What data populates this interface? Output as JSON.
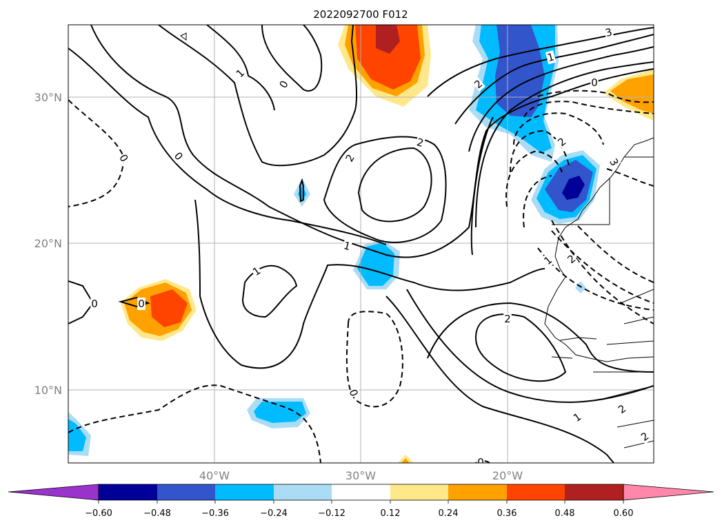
{
  "title": "2022092700 F012",
  "lat_labels": [
    "30°N",
    "20°N",
    "10°N"
  ],
  "lon_labels": [
    "40°W",
    "30°W",
    "20°W"
  ],
  "colorbar": {
    "ticks": [
      "−0.60",
      "−0.48",
      "−0.36",
      "−0.24",
      "−0.12",
      "0.12",
      "0.24",
      "0.36",
      "0.48",
      "0.60"
    ],
    "colors": [
      "#9933cc",
      "#000099",
      "#3355cc",
      "#00bbff",
      "#aaddf5",
      "#ffffff",
      "#ffe88a",
      "#ffa200",
      "#ff4400",
      "#b02020",
      "#ff88aa"
    ]
  },
  "contour_labels": {
    "c1": "1",
    "c2": "0",
    "c3": "0",
    "c4": "2",
    "c5": "2",
    "c6": "2",
    "c7": "1",
    "c8": "1",
    "c9": "0",
    "c10": "0",
    "c11": "0",
    "c12": "2",
    "c13": "0",
    "c14": "3",
    "c15": "0",
    "c16": "1",
    "c17": "2",
    "c18": "3",
    "c19": "1",
    "c20": "2",
    "c21": "1",
    "c22": "2",
    "c23": "2",
    "c24": "0"
  }
}
